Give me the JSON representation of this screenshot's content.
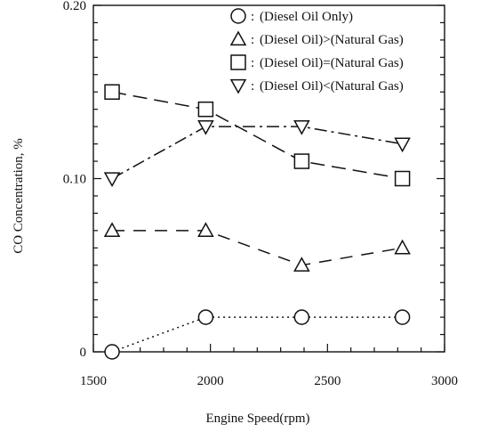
{
  "chart_data": {
    "type": "line",
    "title": "",
    "xlabel": "Engine Speed(rpm)",
    "ylabel": "CO Concentration, %",
    "xlim": [
      1500,
      3000
    ],
    "ylim": [
      0,
      0.2
    ],
    "x_ticks": [
      "1500",
      "2000",
      "2500",
      "3000"
    ],
    "y_ticks": [
      "0",
      "0.10",
      "0.20"
    ],
    "grid": false,
    "legend_position": "top-right",
    "series": [
      {
        "name": "(Diesel Oil Only)",
        "marker": "circle",
        "line": "dotted",
        "x": [
          1580,
          1980,
          2390,
          2820
        ],
        "y": [
          0.0,
          0.02,
          0.02,
          0.02
        ]
      },
      {
        "name": "(Diesel Oil)>(Natural Gas)",
        "marker": "triangle-up",
        "line": "dashed",
        "x": [
          1580,
          1980,
          2390,
          2820
        ],
        "y": [
          0.07,
          0.07,
          0.05,
          0.06
        ]
      },
      {
        "name": "(Diesel Oil)=(Natural Gas)",
        "marker": "square",
        "line": "long-dash",
        "x": [
          1580,
          1980,
          2390,
          2820
        ],
        "y": [
          0.15,
          0.14,
          0.11,
          0.1
        ]
      },
      {
        "name": "(Diesel Oil)<(Natural Gas)",
        "marker": "triangle-down",
        "line": "dash-dot",
        "x": [
          1580,
          1980,
          2390,
          2820
        ],
        "y": [
          0.1,
          0.13,
          0.13,
          0.12
        ]
      }
    ]
  }
}
